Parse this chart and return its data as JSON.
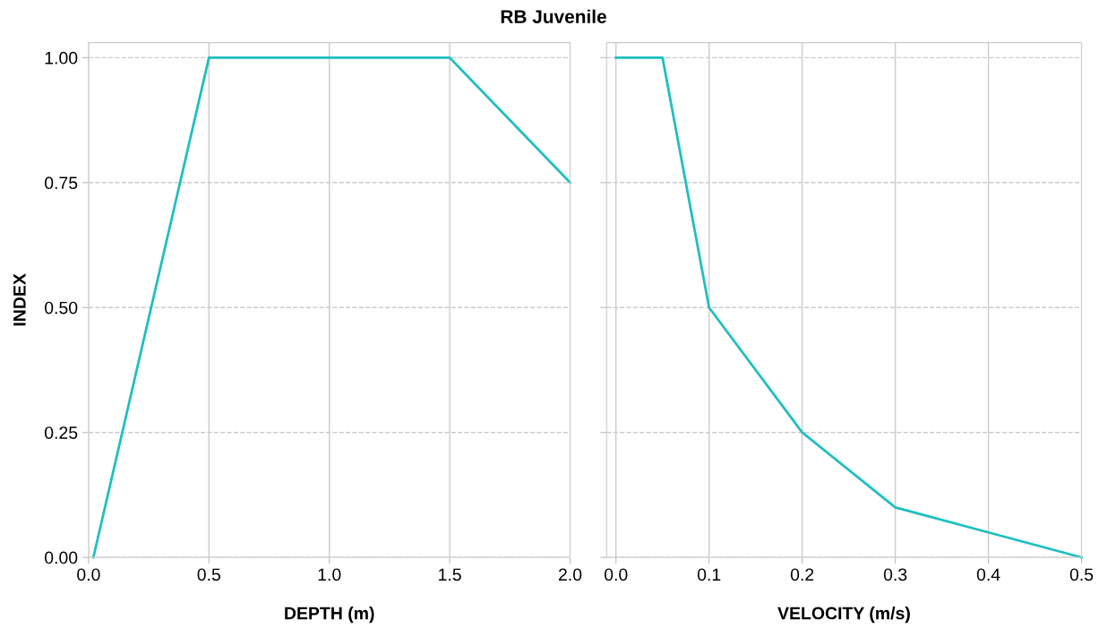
{
  "chart_data": [
    {
      "type": "line",
      "title": "RB Juvenile",
      "xlabel": "DEPTH (m)",
      "ylabel": "INDEX",
      "x": [
        0.02,
        0.5,
        1.5,
        2.0
      ],
      "series": [
        {
          "color": "#1fbfbf",
          "values": [
            0,
            1,
            1,
            0.75
          ]
        }
      ],
      "xlim": [
        0,
        2.0
      ],
      "xticks": [
        {
          "value": 0,
          "label": "0.0"
        },
        0.5,
        {
          "value": 1,
          "label": "1.0"
        },
        1.5,
        {
          "value": 2,
          "label": "2.0"
        }
      ],
      "ylim": [
        0,
        1.03
      ],
      "yticks": [
        {
          "value": 0,
          "label": "0.00"
        },
        0.25,
        {
          "value": 0.5,
          "label": "0.50"
        },
        0.75,
        {
          "value": 1,
          "label": "1.00"
        }
      ],
      "grid": true,
      "legend": false,
      "marker": "none",
      "line_style": "solid"
    },
    {
      "type": "line",
      "xlabel": "VELOCITY (m/s)",
      "x": [
        0,
        0.05,
        0.1,
        0.2,
        0.3,
        0.4,
        0.5
      ],
      "series": [
        {
          "color": "#1fbfbf",
          "values": [
            1,
            1,
            0.5,
            0.25,
            0.1,
            0.05,
            0
          ]
        }
      ],
      "xlim": [
        -0.01,
        0.5
      ],
      "xticks": [
        {
          "value": 0,
          "label": "0.0"
        },
        0.1,
        0.2,
        0.3,
        0.4,
        0.5
      ],
      "ylim": [
        0,
        1.03
      ],
      "yticks": [
        0,
        0.25,
        0.5,
        0.75,
        1
      ],
      "tick_labels": "x",
      "grid": true,
      "legend": false,
      "marker": "none",
      "line_style": "solid"
    }
  ]
}
